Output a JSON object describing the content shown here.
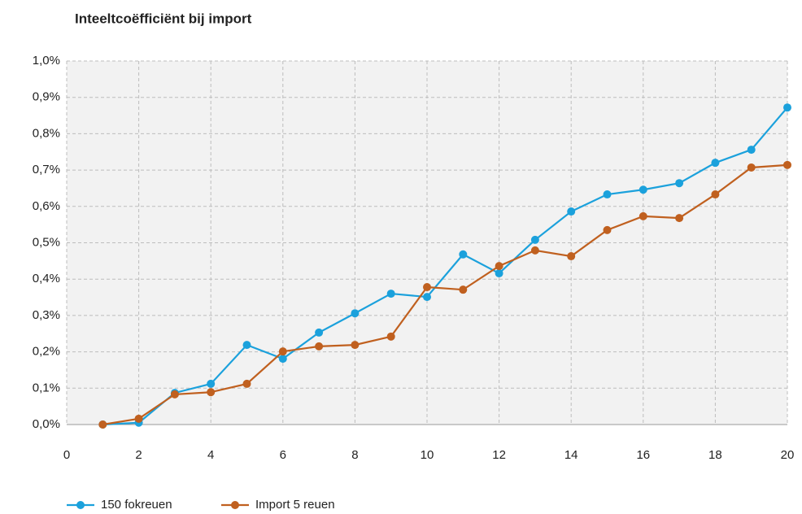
{
  "chart_data": {
    "type": "line",
    "title": "Inteeltcoëfficiënt bij import",
    "x": [
      1,
      2,
      3,
      4,
      5,
      6,
      7,
      8,
      9,
      10,
      11,
      12,
      13,
      14,
      15,
      16,
      17,
      18,
      19,
      20
    ],
    "series": [
      {
        "name": "150 fokreuen",
        "color": "#1ba1dc",
        "values": [
          0,
          0.005,
          0.087,
          0.112,
          0.219,
          0.181,
          0.253,
          0.306,
          0.36,
          0.351,
          0.468,
          0.416,
          0.508,
          0.586,
          0.633,
          0.646,
          0.664,
          0.72,
          0.756,
          0.872
        ]
      },
      {
        "name": "Import 5 reuen",
        "color": "#c0601f",
        "values": [
          0,
          0.016,
          0.083,
          0.089,
          0.112,
          0.201,
          0.215,
          0.219,
          0.242,
          0.378,
          0.371,
          0.436,
          0.479,
          0.463,
          0.535,
          0.573,
          0.568,
          0.633,
          0.707,
          0.714
        ]
      }
    ],
    "xlim": [
      0,
      20
    ],
    "xticks": [
      0,
      2,
      4,
      6,
      8,
      10,
      12,
      14,
      16,
      18,
      20
    ],
    "ylim": [
      0,
      1
    ],
    "yticks": [
      {
        "value": 0,
        "label": "0,0%"
      },
      {
        "value": 0.1,
        "label": "0,1%"
      },
      {
        "value": 0.2,
        "label": "0,2%"
      },
      {
        "value": 0.3,
        "label": "0,3%"
      },
      {
        "value": 0.4,
        "label": "0,4%"
      },
      {
        "value": 0.5,
        "label": "0,5%"
      },
      {
        "value": 0.6,
        "label": "0,6%"
      },
      {
        "value": 0.7,
        "label": "0,7%"
      },
      {
        "value": 0.8,
        "label": "0,8%"
      },
      {
        "value": 0.9,
        "label": "0,9%"
      },
      {
        "value": 1,
        "label": "1,0%"
      }
    ],
    "grid": true,
    "legend": "bottom-left"
  }
}
